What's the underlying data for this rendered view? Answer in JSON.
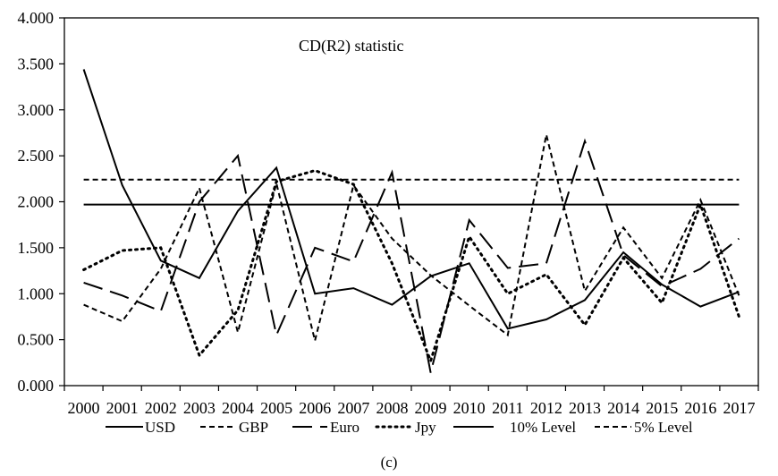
{
  "chart_data": {
    "type": "line",
    "title": "CD(R2) statistic",
    "caption": "(c)",
    "xlabel": "",
    "ylabel": "",
    "categories": [
      "2000",
      "2001",
      "2002",
      "2003",
      "2004",
      "2005",
      "2006",
      "2007",
      "2008",
      "2009",
      "2010",
      "2011",
      "2012",
      "2013",
      "2014",
      "2015",
      "2016",
      "2017"
    ],
    "ylim": [
      0,
      4
    ],
    "yticks": [
      "0.000",
      "0.500",
      "1.000",
      "1.500",
      "2.000",
      "2.500",
      "3.000",
      "3.500",
      "4.000"
    ],
    "grid": false,
    "legend_position": "bottom",
    "series": [
      {
        "name": "USD",
        "style": "solid",
        "values": [
          3.44,
          2.18,
          1.36,
          1.17,
          1.9,
          2.37,
          1.0,
          1.06,
          0.88,
          1.19,
          1.33,
          0.62,
          0.72,
          0.93,
          1.45,
          1.1,
          0.86,
          1.02
        ]
      },
      {
        "name": "GBP",
        "style": "dashed",
        "values": [
          0.88,
          0.7,
          1.27,
          2.15,
          0.58,
          2.2,
          0.49,
          2.18,
          1.6,
          1.2,
          0.87,
          0.55,
          2.73,
          1.03,
          1.72,
          1.17,
          2.02,
          0.98
        ]
      },
      {
        "name": "Euro",
        "style": "longdash",
        "values": [
          1.12,
          0.98,
          0.81,
          2.0,
          2.5,
          0.55,
          1.5,
          1.35,
          2.32,
          0.14,
          1.8,
          1.28,
          1.33,
          2.66,
          1.42,
          1.08,
          1.27,
          1.6
        ]
      },
      {
        "name": "Jpy",
        "style": "dotted",
        "values": [
          1.26,
          1.47,
          1.5,
          0.33,
          0.82,
          2.22,
          2.34,
          2.19,
          1.33,
          0.27,
          1.62,
          1.0,
          1.21,
          0.66,
          1.39,
          0.9,
          1.97,
          0.75
        ]
      },
      {
        "name": "10%  Level",
        "style": "solid",
        "values": [
          1.97,
          1.97,
          1.97,
          1.97,
          1.97,
          1.97,
          1.97,
          1.97,
          1.97,
          1.97,
          1.97,
          1.97,
          1.97,
          1.97,
          1.97,
          1.97,
          1.97,
          1.97
        ]
      },
      {
        "name": "5% Level",
        "style": "dashed",
        "values": [
          2.24,
          2.24,
          2.24,
          2.24,
          2.24,
          2.24,
          2.24,
          2.24,
          2.24,
          2.24,
          2.24,
          2.24,
          2.24,
          2.24,
          2.24,
          2.24,
          2.24,
          2.24
        ]
      }
    ]
  }
}
